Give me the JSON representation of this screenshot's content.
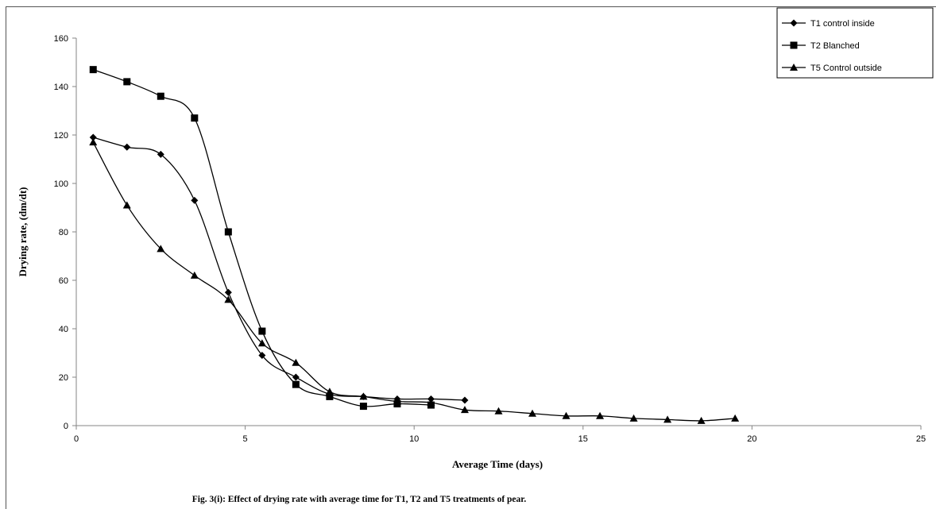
{
  "chart_data": {
    "type": "scatter",
    "xlabel": "Average Time  (days)",
    "ylabel": "Drying rate, (dm/dt)",
    "caption": "Fig. 3(i):  Effect of drying rate with average time for T1, T2 and T5 treatments of pear.",
    "xlim": [
      0,
      25
    ],
    "ylim": [
      0,
      160
    ],
    "x_ticks": [
      0,
      5,
      10,
      15,
      20,
      25
    ],
    "y_ticks": [
      0,
      20,
      40,
      60,
      80,
      100,
      120,
      140,
      160
    ],
    "grid": false,
    "legend_position": "top-right",
    "line_style": "smooth",
    "series": [
      {
        "name": "T1 control inside",
        "marker": "diamond",
        "x": [
          0.5,
          1.5,
          2.5,
          3.5,
          4.5,
          5.5,
          6.5,
          7.5,
          8.5,
          9.5,
          10.5,
          11.5
        ],
        "values": [
          119,
          115,
          112,
          93,
          55,
          29,
          20,
          13,
          12,
          11,
          11,
          10.5
        ]
      },
      {
        "name": "T2 Blanched",
        "marker": "square",
        "x": [
          0.5,
          1.5,
          2.5,
          3.5,
          4.5,
          5.5,
          6.5,
          7.5,
          8.5,
          9.5,
          10.5
        ],
        "values": [
          147,
          142,
          136,
          127,
          80,
          39,
          17,
          12,
          8,
          9,
          8.5
        ]
      },
      {
        "name": "T5 Control outside",
        "marker": "triangle",
        "x": [
          0.5,
          1.5,
          2.5,
          3.5,
          4.5,
          5.5,
          6.5,
          7.5,
          8.5,
          9.5,
          10.5,
          11.5,
          12.5,
          13.5,
          14.5,
          15.5,
          16.5,
          17.5,
          18.5,
          19.5
        ],
        "values": [
          117,
          91,
          73,
          62,
          52,
          34,
          26,
          14,
          12,
          10,
          9.5,
          6.5,
          6,
          5,
          4,
          4,
          3,
          2.5,
          2,
          3
        ]
      }
    ]
  }
}
